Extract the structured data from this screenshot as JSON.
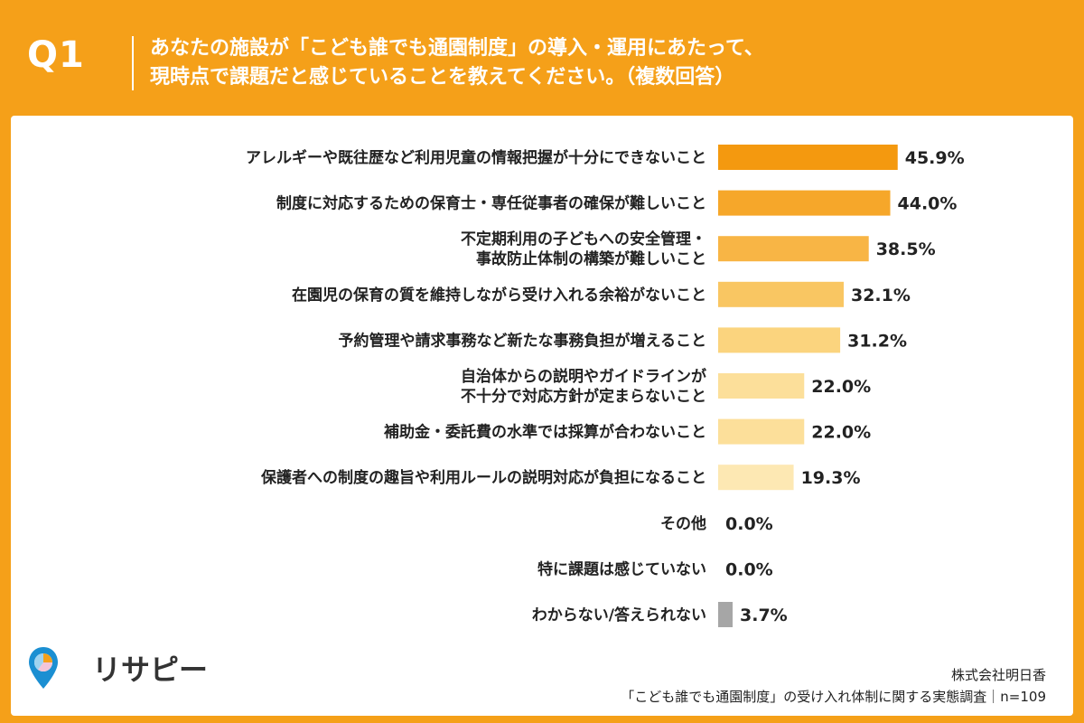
{
  "header": {
    "q_label": "Q1",
    "title_line1": "あなたの施設が「こども誰でも通園制度」の導入・運用にあたって、",
    "title_line2": "現時点で課題だと感じていることを教えてください。（複数回答）"
  },
  "chart_data": {
    "type": "bar",
    "orientation": "horizontal",
    "categories": [
      "アレルギーや既往歴など利用児童の情報把握が十分にできないこと",
      "制度に対応するための保育士・専任従事者の確保が難しいこと",
      "不定期利用の子どもへの安全管理・\n事故防止体制の構築が難しいこと",
      "在園児の保育の質を維持しながら受け入れる余裕がないこと",
      "予約管理や請求事務など新たな事務負担が増えること",
      "自治体からの説明やガイドラインが\n不十分で対応方針が定まらないこと",
      "補助金・委託費の水準では採算が合わないこと",
      "保護者への制度の趣旨や利用ルールの説明対応が負担になること",
      "その他",
      "特に課題は感じていない",
      "わからない/答えられない"
    ],
    "values": [
      45.9,
      44.0,
      38.5,
      32.1,
      31.2,
      22.0,
      22.0,
      19.3,
      0.0,
      0.0,
      3.7
    ],
    "value_labels": [
      "45.9%",
      "44.0%",
      "38.5%",
      "32.1%",
      "31.2%",
      "22.0%",
      "22.0%",
      "19.3%",
      "0.0%",
      "0.0%",
      "3.7%"
    ],
    "bar_colors": [
      "#F4990F",
      "#F6A72A",
      "#F8B545",
      "#F9C662",
      "#FBD47E",
      "#FCDF9A",
      "#FCDF9A",
      "#FDE8B3",
      "#FDE8B3",
      "#FDE8B3",
      "#A6A6A6"
    ],
    "xlim": [
      0,
      50
    ]
  },
  "logo": {
    "text": "リサピー"
  },
  "source": {
    "company": "株式会社明日香",
    "survey": "「こども誰でも通園制度」の受け入れ体制に関する実態調査｜n=109"
  }
}
